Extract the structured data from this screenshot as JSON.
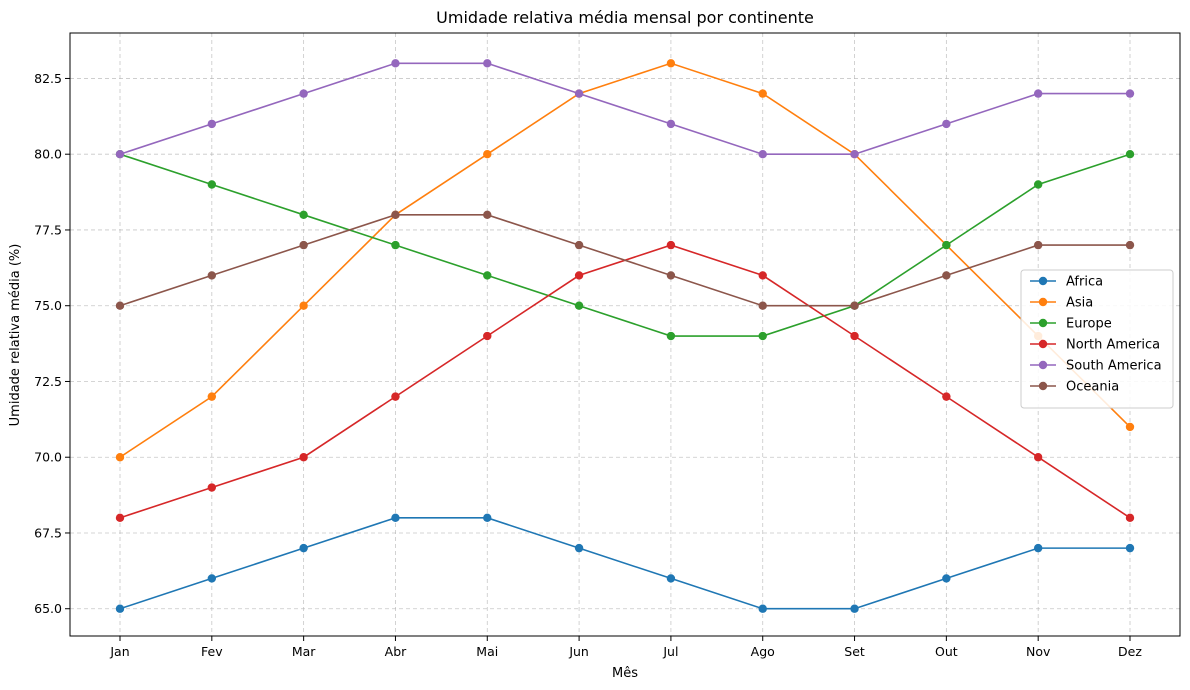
{
  "chart_data": {
    "type": "line",
    "title": "Umidade relativa média mensal por continente",
    "xlabel": "Mês",
    "ylabel": "Umidade relativa média (%)",
    "categories": [
      "Jan",
      "Fev",
      "Mar",
      "Abr",
      "Mai",
      "Jun",
      "Jul",
      "Ago",
      "Set",
      "Out",
      "Nov",
      "Dez"
    ],
    "ylim": [
      64.1,
      84.0
    ],
    "yticks": [
      65.0,
      67.5,
      70.0,
      72.5,
      75.0,
      77.5,
      80.0,
      82.5
    ],
    "ytick_labels": [
      "65.0",
      "67.5",
      "70.0",
      "72.5",
      "75.0",
      "77.5",
      "80.0",
      "82.5"
    ],
    "grid": true,
    "legend_position": "center-right",
    "series": [
      {
        "name": "Africa",
        "color": "#1f77b4",
        "values": [
          65,
          66,
          67,
          68,
          68,
          67,
          66,
          65,
          65,
          66,
          67,
          67
        ]
      },
      {
        "name": "Asia",
        "color": "#ff7f0e",
        "values": [
          70,
          72,
          75,
          78,
          80,
          82,
          83,
          82,
          80,
          77,
          74,
          71
        ]
      },
      {
        "name": "Europe",
        "color": "#2ca02c",
        "values": [
          80,
          79,
          78,
          77,
          76,
          75,
          74,
          74,
          75,
          77,
          79,
          80
        ]
      },
      {
        "name": "North America",
        "color": "#d62728",
        "values": [
          68,
          69,
          70,
          72,
          74,
          76,
          77,
          76,
          74,
          72,
          70,
          68
        ]
      },
      {
        "name": "South America",
        "color": "#9467bd",
        "values": [
          80,
          81,
          82,
          83,
          83,
          82,
          81,
          80,
          80,
          81,
          82,
          82
        ]
      },
      {
        "name": "Oceania",
        "color": "#8c564b",
        "values": [
          75,
          76,
          77,
          78,
          78,
          77,
          76,
          75,
          75,
          76,
          77,
          77
        ]
      }
    ]
  }
}
